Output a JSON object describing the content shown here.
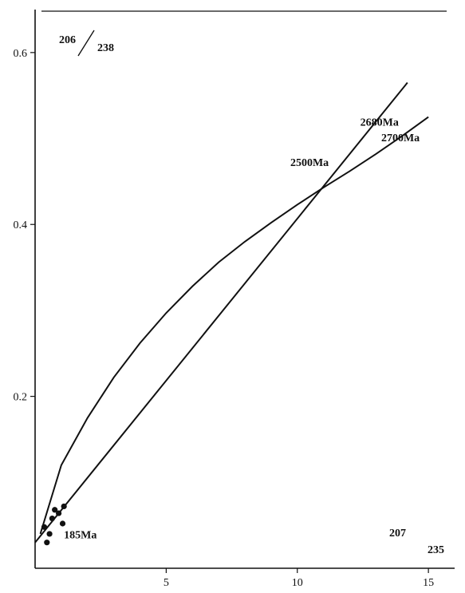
{
  "chart_data": {
    "type": "line",
    "xlim": [
      0,
      16
    ],
    "ylim": [
      0,
      0.65
    ],
    "x_ticks": [
      5,
      10,
      15
    ],
    "x_tick_labels": [
      "5",
      "10",
      "15"
    ],
    "y_ticks": [
      0.2,
      0.4,
      0.6
    ],
    "y_tick_labels": [
      "0.2",
      "0.4",
      "0.6"
    ],
    "y_axis_label": {
      "numerator": "206",
      "denominator": "238"
    },
    "x_axis_label": {
      "numerator": "207",
      "denominator": "235"
    },
    "concordia": {
      "x": [
        0.2,
        1.0,
        2.0,
        3.0,
        4.0,
        5.0,
        6.0,
        7.0,
        8.0,
        9.0,
        10.0,
        11.0,
        12.0,
        13.0,
        14.0,
        15.0
      ],
      "y": [
        0.04,
        0.12,
        0.175,
        0.222,
        0.262,
        0.297,
        0.328,
        0.356,
        0.38,
        0.402,
        0.423,
        0.443,
        0.462,
        0.482,
        0.503,
        0.525
      ]
    },
    "discordia": {
      "x": [
        0.0,
        14.2
      ],
      "y": [
        0.03,
        0.565
      ]
    },
    "data_points": [
      {
        "x": 0.35,
        "y": 0.048
      },
      {
        "x": 0.65,
        "y": 0.058
      },
      {
        "x": 0.9,
        "y": 0.064
      },
      {
        "x": 1.1,
        "y": 0.072
      },
      {
        "x": 0.55,
        "y": 0.04
      },
      {
        "x": 0.45,
        "y": 0.03
      },
      {
        "x": 1.05,
        "y": 0.052
      },
      {
        "x": 0.75,
        "y": 0.068
      }
    ],
    "age_labels": [
      {
        "text": "2500Ma",
        "x": 11.2,
        "y": 0.468
      },
      {
        "text": "2680Ma",
        "x": 12.4,
        "y": 0.515
      },
      {
        "text": "2700Ma",
        "x": 13.2,
        "y": 0.497
      },
      {
        "text": "185Ma",
        "x": 1.1,
        "y": 0.035
      }
    ]
  }
}
